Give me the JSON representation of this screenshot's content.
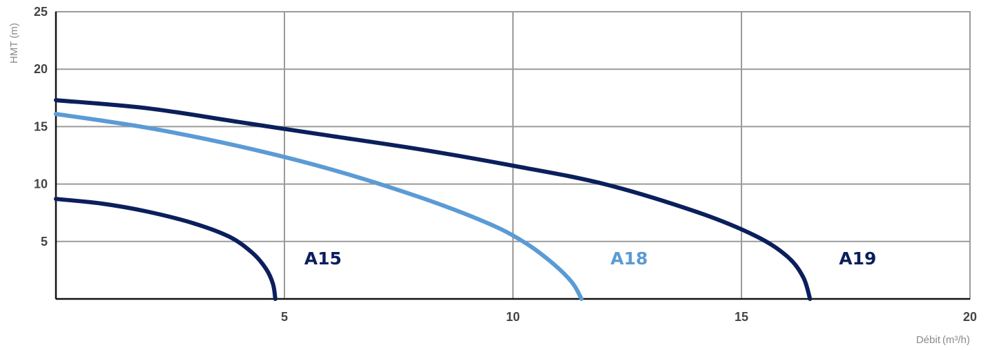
{
  "chart_data": {
    "type": "line",
    "xlabel_main": "Débit",
    "xlabel_unit": "(m³/h)",
    "ylabel": "HMT (m)",
    "xlim": [
      0,
      20
    ],
    "ylim": [
      0,
      25
    ],
    "x_ticks": [
      "5",
      "10",
      "15",
      "20"
    ],
    "y_ticks": [
      "5",
      "10",
      "15",
      "20",
      "25"
    ],
    "grid": true,
    "series": [
      {
        "name": "A15",
        "color": "#0b1f5c",
        "points": [
          [
            0,
            8.7
          ],
          [
            1,
            8.3
          ],
          [
            2,
            7.6
          ],
          [
            3,
            6.6
          ],
          [
            3.8,
            5.4
          ],
          [
            4.3,
            4.0
          ],
          [
            4.6,
            2.6
          ],
          [
            4.75,
            1.3
          ],
          [
            4.8,
            0
          ]
        ]
      },
      {
        "name": "A18",
        "color": "#5b9bd5",
        "points": [
          [
            0,
            16.1
          ],
          [
            2,
            14.9
          ],
          [
            4,
            13.3
          ],
          [
            6,
            11.3
          ],
          [
            8,
            8.8
          ],
          [
            9.5,
            6.5
          ],
          [
            10.3,
            4.8
          ],
          [
            10.9,
            3.0
          ],
          [
            11.3,
            1.4
          ],
          [
            11.5,
            0
          ]
        ]
      },
      {
        "name": "A19",
        "color": "#0b1f5c",
        "points": [
          [
            0,
            17.3
          ],
          [
            2,
            16.6
          ],
          [
            4,
            15.4
          ],
          [
            6,
            14.2
          ],
          [
            8,
            13.0
          ],
          [
            10,
            11.6
          ],
          [
            12,
            10.0
          ],
          [
            14,
            7.6
          ],
          [
            15.3,
            5.5
          ],
          [
            16.0,
            3.7
          ],
          [
            16.35,
            1.9
          ],
          [
            16.5,
            0
          ]
        ]
      }
    ]
  }
}
